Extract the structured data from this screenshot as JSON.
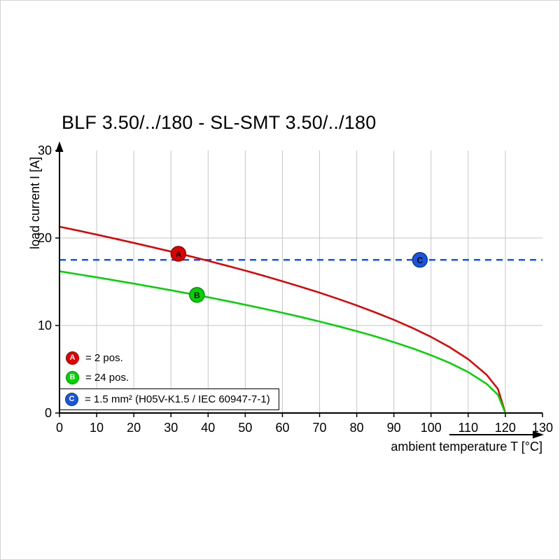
{
  "title": "BLF 3.50/../180 - SL-SMT 3.50/../180",
  "chart_data": {
    "type": "line",
    "title": "BLF 3.50/../180 - SL-SMT 3.50/../180",
    "xlabel": "ambient temperature T [°C]",
    "ylabel": "load current I [A]",
    "xlim": [
      0,
      130
    ],
    "ylim": [
      0,
      30
    ],
    "xticks": [
      0,
      10,
      20,
      30,
      40,
      50,
      60,
      70,
      80,
      90,
      100,
      110,
      120,
      130
    ],
    "yticks": [
      0,
      10,
      20,
      30
    ],
    "grid": true,
    "grid_color": "#c6c6c6",
    "axis_color": "#000000",
    "legend_position": "lower-left-inside",
    "series": [
      {
        "name": "A",
        "label": "= 2 pos.",
        "color": "#e10000",
        "border": "#9b0000",
        "style": "solid",
        "x": [
          0,
          5,
          10,
          15,
          20,
          25,
          30,
          35,
          40,
          45,
          50,
          55,
          60,
          65,
          70,
          75,
          80,
          85,
          90,
          95,
          100,
          105,
          110,
          115,
          118,
          120
        ],
        "y": [
          21.3,
          20.85,
          20.39,
          19.92,
          19.44,
          18.95,
          18.45,
          17.93,
          17.39,
          16.84,
          16.27,
          15.68,
          15.06,
          14.42,
          13.75,
          13.04,
          12.3,
          11.5,
          10.65,
          9.72,
          8.7,
          7.53,
          6.15,
          4.35,
          2.75,
          0
        ],
        "marker": {
          "x": 32,
          "y": 18.2,
          "letter": "A"
        }
      },
      {
        "name": "B",
        "label": "= 24 pos.",
        "color": "#00d400",
        "border": "#009100",
        "style": "solid",
        "x": [
          0,
          5,
          10,
          15,
          20,
          25,
          30,
          35,
          40,
          45,
          50,
          55,
          60,
          65,
          70,
          75,
          80,
          85,
          90,
          95,
          100,
          105,
          110,
          115,
          118,
          120
        ],
        "y": [
          16.2,
          15.86,
          15.51,
          15.15,
          14.79,
          14.41,
          14.03,
          13.63,
          13.23,
          12.81,
          12.37,
          11.92,
          11.46,
          10.97,
          10.46,
          9.92,
          9.35,
          8.75,
          8.1,
          7.39,
          6.61,
          5.73,
          4.68,
          3.31,
          2.09,
          0
        ],
        "marker": {
          "x": 37,
          "y": 13.5,
          "letter": "B"
        }
      },
      {
        "name": "C",
        "label": "= 1.5 mm² (H05V-K1.5 / IEC 60947-7-1)",
        "color": "#1a56db",
        "border": "#0d3a99",
        "style": "dashed",
        "y_const": 17.5,
        "marker": {
          "x": 97,
          "y": 17.5,
          "letter": "C"
        }
      }
    ]
  },
  "legend": {
    "items": [
      {
        "letter": "A",
        "text": "= 2 pos.",
        "boxed": false
      },
      {
        "letter": "B",
        "text": "= 24 pos.",
        "boxed": false
      },
      {
        "letter": "C",
        "text": "= 1.5 mm² (H05V-K1.5 / IEC 60947-7-1)",
        "boxed": true
      }
    ]
  }
}
